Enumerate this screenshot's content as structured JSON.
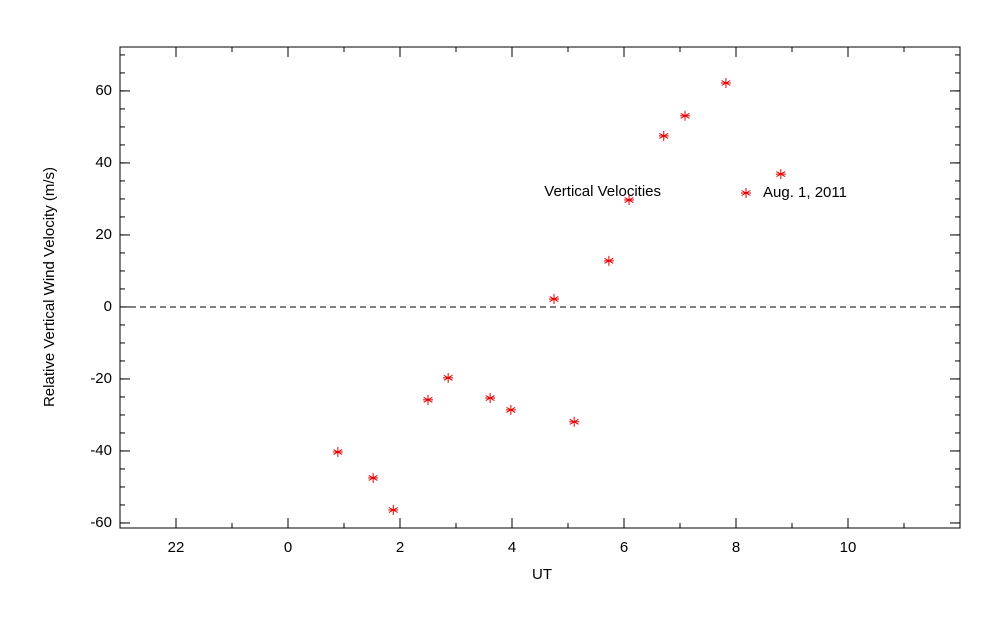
{
  "chart_data": {
    "type": "scatter",
    "x_label": "UT",
    "y_label": "Relative Vertical Wind Velocity (m/s)",
    "annotation": "Vertical Velocities",
    "x": [
      0.89,
      1.52,
      1.88,
      2.5,
      2.86,
      3.61,
      3.98,
      4.75,
      5.11,
      5.73,
      6.09,
      6.71,
      7.09,
      7.82,
      8.8
    ],
    "series": [
      {
        "name": "Aug. 1, 2011",
        "color": "#e00000",
        "values": [
          -40.3,
          -47.5,
          -56.4,
          -25.8,
          -19.7,
          -25.3,
          -28.6,
          2.2,
          -31.9,
          12.8,
          29.7,
          47.5,
          53.1,
          62.2,
          36.9
        ]
      }
    ],
    "xlim": [
      -3,
      12
    ],
    "xticks": [
      {
        "value": -2,
        "label": "22"
      },
      0,
      2,
      4,
      6,
      8,
      10
    ],
    "x_minor_step": 1,
    "ylim": [
      -61.4,
      72.2
    ],
    "yticks": [
      -60,
      -40,
      -20,
      0,
      20,
      40,
      60
    ],
    "y_minor_step": 5,
    "hline": 0,
    "legend": "upper right"
  }
}
